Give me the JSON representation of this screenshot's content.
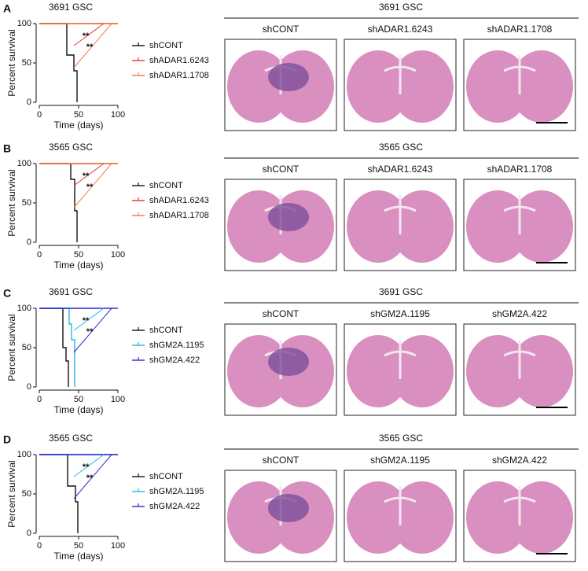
{
  "chart_data": [
    {
      "type": "step",
      "panel": "A",
      "title": "3691 GSC",
      "xlabel": "Time (days)",
      "ylabel": "Percent survival",
      "xlim": [
        0,
        100
      ],
      "xticks": [
        0,
        50,
        100
      ],
      "ylim": [
        0,
        100
      ],
      "yticks": [
        0,
        50,
        100
      ],
      "series": [
        {
          "name": "shCONT",
          "color": "#111111",
          "x": [
            0,
            35,
            44,
            48
          ],
          "values": [
            100,
            60,
            40,
            0
          ]
        },
        {
          "name": "shADAR1.6243",
          "color": "#e8352a",
          "x": [
            0,
            100
          ],
          "values": [
            100,
            100
          ]
        },
        {
          "name": "shADAR1.1708",
          "color": "#f07a45",
          "x": [
            0,
            100
          ],
          "values": [
            100,
            100
          ]
        }
      ],
      "annotations": [
        {
          "text": "**",
          "color": "#e8352a"
        },
        {
          "text": "**",
          "color": "#f07a45"
        }
      ],
      "image_title": "3691 GSC",
      "image_labels": [
        "shCONT",
        "shADAR1.6243",
        "shADAR1.1708"
      ]
    },
    {
      "type": "step",
      "panel": "B",
      "title": "3565 GSC",
      "xlabel": "Time (days)",
      "ylabel": "Percent survival",
      "xlim": [
        0,
        100
      ],
      "xticks": [
        0,
        50,
        100
      ],
      "ylim": [
        0,
        100
      ],
      "yticks": [
        0,
        50,
        100
      ],
      "series": [
        {
          "name": "shCONT",
          "color": "#111111",
          "x": [
            0,
            40,
            45,
            48
          ],
          "values": [
            100,
            80,
            40,
            0
          ]
        },
        {
          "name": "shADAR1.6243",
          "color": "#e8352a",
          "x": [
            0,
            100
          ],
          "values": [
            100,
            100
          ]
        },
        {
          "name": "shADAR1.1708",
          "color": "#f07a45",
          "x": [
            0,
            100
          ],
          "values": [
            100,
            100
          ]
        }
      ],
      "annotations": [
        {
          "text": "**",
          "color": "#e8352a"
        },
        {
          "text": "**",
          "color": "#f07a45"
        }
      ],
      "image_title": "3565 GSC",
      "image_labels": [
        "shCONT",
        "shADAR1.6243",
        "shADAR1.1708"
      ]
    },
    {
      "type": "step",
      "panel": "C",
      "title": "3691 GSC",
      "xlabel": "Time (days)",
      "ylabel": "Percent survival",
      "xlim": [
        0,
        100
      ],
      "xticks": [
        0,
        50,
        100
      ],
      "ylim": [
        0,
        100
      ],
      "yticks": [
        0,
        50,
        100
      ],
      "series": [
        {
          "name": "shCONT",
          "color": "#111111",
          "x": [
            0,
            30,
            34,
            37
          ],
          "values": [
            100,
            50,
            33,
            0
          ]
        },
        {
          "name": "shGM2A.1195",
          "color": "#2ab7e6",
          "x": [
            0,
            38,
            41,
            45
          ],
          "values": [
            100,
            80,
            60,
            0
          ]
        },
        {
          "name": "shGM2A.422",
          "color": "#2a2ad6",
          "x": [
            0,
            100
          ],
          "values": [
            100,
            100
          ]
        }
      ],
      "annotations": [
        {
          "text": "**",
          "color": "#2ab7e6"
        },
        {
          "text": "**",
          "color": "#2a2ad6"
        }
      ],
      "image_title": "3691 GSC",
      "image_labels": [
        "shCONT",
        "shGM2A.1195",
        "shGM2A.422"
      ]
    },
    {
      "type": "step",
      "panel": "D",
      "title": "3565 GSC",
      "xlabel": "Time (days)",
      "ylabel": "Percent survival",
      "xlim": [
        0,
        100
      ],
      "xticks": [
        0,
        50,
        100
      ],
      "ylim": [
        0,
        100
      ],
      "yticks": [
        0,
        50,
        100
      ],
      "series": [
        {
          "name": "shCONT",
          "color": "#111111",
          "x": [
            0,
            36,
            46,
            49
          ],
          "values": [
            100,
            60,
            40,
            0
          ]
        },
        {
          "name": "shGM2A.1195",
          "color": "#2ab7e6",
          "x": [
            0,
            100
          ],
          "values": [
            100,
            100
          ]
        },
        {
          "name": "shGM2A.422",
          "color": "#2a2ad6",
          "x": [
            0,
            100
          ],
          "values": [
            100,
            100
          ]
        }
      ],
      "annotations": [
        {
          "text": "**",
          "color": "#2ab7e6"
        },
        {
          "text": "**",
          "color": "#2a2ad6"
        }
      ],
      "image_title": "3565 GSC",
      "image_labels": [
        "shCONT",
        "shGM2A.1195",
        "shGM2A.422"
      ]
    }
  ]
}
